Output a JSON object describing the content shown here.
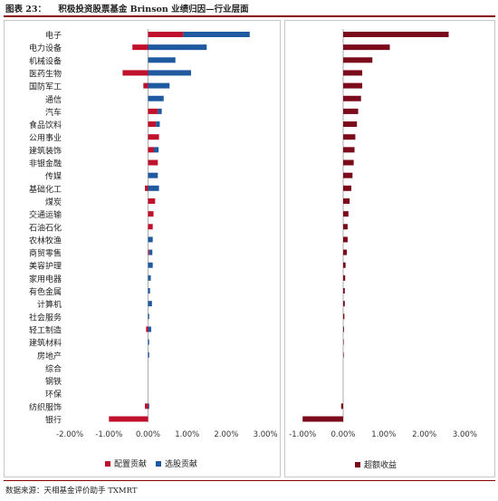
{
  "figure": {
    "number": "图表 23：",
    "title": "积极投资股票基金 Brinson 业绩归因—行业层面",
    "source": "数据来源：天相基金评价助手 TXMRT"
  },
  "colors": {
    "allocation": "#c0102c",
    "selection": "#1f5aa0",
    "excess": "#7b0a1a"
  },
  "chart_data": [
    {
      "type": "bar",
      "orientation": "horizontal",
      "stacked": true,
      "categories": [
        "电子",
        "电力设备",
        "机械设备",
        "医药生物",
        "国防军工",
        "通信",
        "汽车",
        "食品饮料",
        "公用事业",
        "建筑装饰",
        "非银金融",
        "传媒",
        "基础化工",
        "煤炭",
        "交通运输",
        "石油石化",
        "农林牧渔",
        "商贸零售",
        "美容护理",
        "家用电器",
        "有色金属",
        "计算机",
        "社会服务",
        "轻工制造",
        "建筑材料",
        "房地产",
        "综合",
        "钢铁",
        "环保",
        "纺织服饰",
        "银行"
      ],
      "series": [
        {
          "name": "配置贡献",
          "values": [
            0.009,
            -0.004,
            0.0,
            -0.0065,
            -0.0012,
            0.0,
            0.0025,
            0.002,
            0.0028,
            0.0015,
            0.0025,
            0.0,
            -0.0008,
            0.0018,
            0.0014,
            0.0012,
            0.0,
            0.0003,
            0.0,
            0.0,
            0.0,
            0.0,
            0.0,
            -0.0005,
            0.0,
            0.0,
            0.0,
            0.0,
            0.0,
            -0.0008,
            -0.01
          ]
        },
        {
          "name": "选股贡献",
          "values": [
            0.017,
            0.015,
            0.007,
            0.011,
            0.0055,
            0.004,
            0.001,
            0.001,
            0.0,
            0.0012,
            0.0,
            0.0025,
            0.0028,
            0.0,
            0.0,
            0.0,
            0.0012,
            0.0008,
            0.0012,
            0.0007,
            0.0005,
            0.001,
            0.0003,
            0.0008,
            0.0003,
            0.0003,
            0.0,
            0.0,
            0.0,
            0.0003,
            0.0
          ]
        }
      ],
      "xlim": [
        -0.02,
        0.03
      ],
      "xticks": [
        "-2.00%",
        "-1.00%",
        "0.00%",
        "1.00%",
        "2.00%",
        "3.00%"
      ],
      "legend_position": "bottom"
    },
    {
      "type": "bar",
      "orientation": "horizontal",
      "series": [
        {
          "name": "超额收益",
          "values": [
            0.026,
            0.0115,
            0.0072,
            0.0047,
            0.0047,
            0.0044,
            0.0037,
            0.0034,
            0.003,
            0.0028,
            0.0026,
            0.0023,
            0.002,
            0.0016,
            0.0013,
            0.0011,
            0.0011,
            0.0009,
            0.0006,
            0.0005,
            0.0004,
            0.0004,
            0.0003,
            0.0002,
            0.0001,
            0.0001,
            0.0,
            0.0,
            0.0,
            -0.0005,
            -0.01
          ]
        }
      ],
      "xlim": [
        -0.01,
        0.03
      ],
      "xticks": [
        "-1.00%",
        "0.00%",
        "1.00%",
        "2.00%",
        "3.00%"
      ],
      "legend_position": "bottom"
    }
  ]
}
